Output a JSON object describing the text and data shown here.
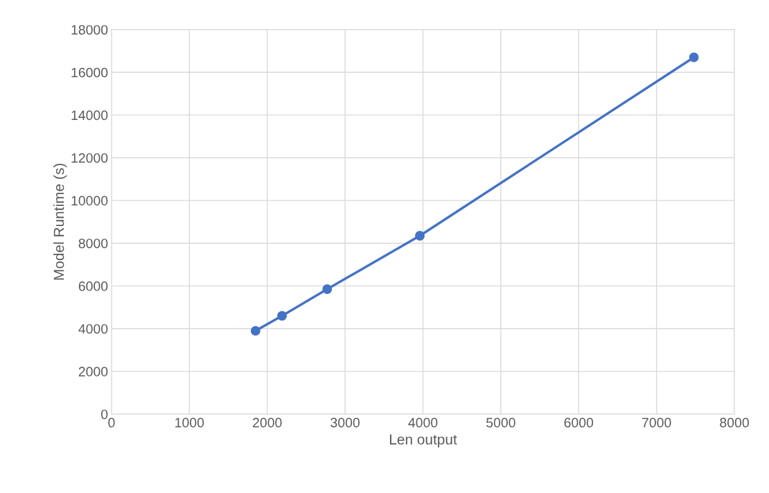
{
  "chart_data": {
    "type": "line",
    "xlabel": "Len output",
    "ylabel": "Model Runtime (s)",
    "x": [
      1850,
      2190,
      2770,
      3960,
      7480
    ],
    "series": [
      {
        "color": "#4472c4",
        "values": [
          3900,
          4600,
          5850,
          8350,
          16700
        ]
      }
    ],
    "xlim": [
      0,
      8000
    ],
    "xticks": [
      0,
      1000,
      2000,
      3000,
      4000,
      5000,
      6000,
      7000,
      8000
    ],
    "ylim": [
      0,
      18000
    ],
    "yticks": [
      0,
      2000,
      4000,
      6000,
      8000,
      10000,
      12000,
      14000,
      16000,
      18000
    ],
    "grid": true,
    "marker": "circle",
    "line_style": "solid"
  }
}
